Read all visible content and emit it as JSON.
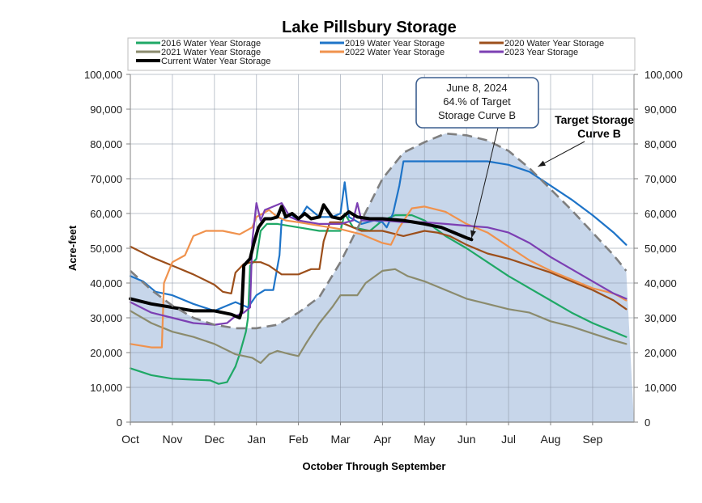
{
  "chart_data": {
    "type": "line",
    "title": "Lake Pillsbury Storage",
    "xlabel": "October Through September",
    "ylabel": "Acre-feet",
    "ylim": [
      0,
      100000
    ],
    "xlim": [
      0,
      11.8
    ],
    "yticks": [
      0,
      10000,
      20000,
      30000,
      40000,
      50000,
      60000,
      70000,
      80000,
      90000,
      100000
    ],
    "ytick_labels": [
      "0",
      "10,000",
      "20,000",
      "30,000",
      "40,000",
      "50,000",
      "60,000",
      "70,000",
      "80,000",
      "90,000",
      "100,000"
    ],
    "x_tick_labels": [
      "Oct",
      "Nov",
      "Dec",
      "Jan",
      "Feb",
      "Mar",
      "Apr",
      "May",
      "Jun",
      "Jul",
      "Aug",
      "Sep"
    ],
    "grid": true,
    "legend_position": "top",
    "x_unit": "months since Oct 1",
    "target_curve": {
      "name": "Target Storage Curve B",
      "color": "#7f7f7f",
      "fill": "#c7d6ea",
      "points": [
        [
          0,
          43500
        ],
        [
          0.5,
          38000
        ],
        [
          1,
          33500
        ],
        [
          1.5,
          30000
        ],
        [
          2,
          28000
        ],
        [
          2.5,
          27000
        ],
        [
          3,
          27000
        ],
        [
          3.5,
          28000
        ],
        [
          4,
          31500
        ],
        [
          4.5,
          36000
        ],
        [
          5,
          46000
        ],
        [
          5.5,
          58000
        ],
        [
          6,
          70000
        ],
        [
          6.5,
          77500
        ],
        [
          7,
          80500
        ],
        [
          7.5,
          83000
        ],
        [
          8,
          82500
        ],
        [
          8.5,
          81000
        ],
        [
          9,
          78000
        ],
        [
          9.5,
          73000
        ],
        [
          10,
          67000
        ],
        [
          10.5,
          61000
        ],
        [
          11,
          54500
        ],
        [
          11.5,
          48000
        ],
        [
          11.8,
          43500
        ]
      ]
    },
    "series": [
      {
        "name": "2016 Water Year Storage",
        "color": "#1fa866",
        "width": 2.2,
        "points": [
          [
            0,
            15500
          ],
          [
            0.5,
            13500
          ],
          [
            1,
            12500
          ],
          [
            1.5,
            12200
          ],
          [
            1.9,
            12000
          ],
          [
            2.1,
            11000
          ],
          [
            2.3,
            11500
          ],
          [
            2.5,
            16000
          ],
          [
            2.6,
            19500
          ],
          [
            2.75,
            26000
          ],
          [
            2.8,
            30000
          ],
          [
            2.85,
            45000
          ],
          [
            3,
            47000
          ],
          [
            3.1,
            55000
          ],
          [
            3.25,
            57000
          ],
          [
            3.5,
            57000
          ],
          [
            4,
            56000
          ],
          [
            4.5,
            55000
          ],
          [
            5,
            55000
          ],
          [
            5.1,
            60000
          ],
          [
            5.3,
            56000
          ],
          [
            5.7,
            55000
          ],
          [
            6,
            58000
          ],
          [
            6.3,
            59500
          ],
          [
            6.7,
            59500
          ],
          [
            7,
            58000
          ],
          [
            7.5,
            53500
          ],
          [
            8,
            50000
          ],
          [
            8.5,
            46000
          ],
          [
            9,
            42000
          ],
          [
            9.5,
            38500
          ],
          [
            10,
            35000
          ],
          [
            10.5,
            31500
          ],
          [
            11,
            28500
          ],
          [
            11.5,
            26000
          ],
          [
            11.8,
            24500
          ]
        ]
      },
      {
        "name": "2019 Water Year Storage",
        "color": "#1e74c8",
        "width": 2.2,
        "points": [
          [
            0,
            42000
          ],
          [
            0.3,
            40500
          ],
          [
            0.6,
            37500
          ],
          [
            1,
            36500
          ],
          [
            1.5,
            34000
          ],
          [
            2,
            32000
          ],
          [
            2.3,
            33500
          ],
          [
            2.5,
            34500
          ],
          [
            2.8,
            33000
          ],
          [
            3.0,
            36500
          ],
          [
            3.2,
            38000
          ],
          [
            3.4,
            38000
          ],
          [
            3.55,
            48000
          ],
          [
            3.6,
            58000
          ],
          [
            3.8,
            60000
          ],
          [
            4,
            58000
          ],
          [
            4.2,
            62000
          ],
          [
            4.5,
            59000
          ],
          [
            4.8,
            59000
          ],
          [
            5,
            60000
          ],
          [
            5.1,
            69000
          ],
          [
            5.2,
            59000
          ],
          [
            5.5,
            57000
          ],
          [
            5.8,
            58000
          ],
          [
            6,
            57500
          ],
          [
            6.1,
            56000
          ],
          [
            6.25,
            60000
          ],
          [
            6.4,
            68000
          ],
          [
            6.5,
            75000
          ],
          [
            7,
            75000
          ],
          [
            7.5,
            75000
          ],
          [
            8,
            75000
          ],
          [
            8.5,
            75000
          ],
          [
            9,
            74000
          ],
          [
            9.5,
            72000
          ],
          [
            10,
            68000
          ],
          [
            10.5,
            64000
          ],
          [
            11,
            59500
          ],
          [
            11.5,
            54500
          ],
          [
            11.8,
            51000
          ]
        ]
      },
      {
        "name": "2020 Water Year Storage",
        "color": "#9c4f1b",
        "width": 2.2,
        "points": [
          [
            0,
            50500
          ],
          [
            0.5,
            47500
          ],
          [
            1,
            45000
          ],
          [
            1.5,
            42500
          ],
          [
            2,
            39500
          ],
          [
            2.2,
            37500
          ],
          [
            2.4,
            37000
          ],
          [
            2.5,
            43000
          ],
          [
            2.7,
            45500
          ],
          [
            2.9,
            46000
          ],
          [
            3.1,
            46000
          ],
          [
            3.3,
            45000
          ],
          [
            3.6,
            42500
          ],
          [
            4,
            42500
          ],
          [
            4.3,
            44000
          ],
          [
            4.5,
            44000
          ],
          [
            4.6,
            52000
          ],
          [
            4.75,
            57500
          ],
          [
            5,
            57500
          ],
          [
            5.5,
            55000
          ],
          [
            6,
            55000
          ],
          [
            6.5,
            53500
          ],
          [
            7,
            55000
          ],
          [
            7.3,
            54500
          ],
          [
            7.6,
            53500
          ],
          [
            8,
            51000
          ],
          [
            8.5,
            48500
          ],
          [
            9,
            47000
          ],
          [
            9.5,
            45000
          ],
          [
            10,
            43000
          ],
          [
            10.5,
            40500
          ],
          [
            11,
            38000
          ],
          [
            11.5,
            35000
          ],
          [
            11.8,
            32500
          ]
        ]
      },
      {
        "name": "2021 Water Year Storage",
        "color": "#8b8b6d",
        "width": 2.2,
        "points": [
          [
            0,
            32000
          ],
          [
            0.5,
            28500
          ],
          [
            1,
            26000
          ],
          [
            1.5,
            24500
          ],
          [
            2,
            22500
          ],
          [
            2.5,
            19500
          ],
          [
            2.9,
            18500
          ],
          [
            3.1,
            17000
          ],
          [
            3.3,
            19500
          ],
          [
            3.5,
            20500
          ],
          [
            3.8,
            19500
          ],
          [
            4,
            19000
          ],
          [
            4.2,
            23000
          ],
          [
            4.5,
            28500
          ],
          [
            4.8,
            33000
          ],
          [
            5,
            36500
          ],
          [
            5.4,
            36500
          ],
          [
            5.6,
            40000
          ],
          [
            6,
            43500
          ],
          [
            6.3,
            44000
          ],
          [
            6.6,
            42000
          ],
          [
            7,
            40500
          ],
          [
            7.5,
            38000
          ],
          [
            8,
            35500
          ],
          [
            8.5,
            34000
          ],
          [
            9,
            32500
          ],
          [
            9.5,
            31500
          ],
          [
            10,
            29000
          ],
          [
            10.5,
            27500
          ],
          [
            11,
            25500
          ],
          [
            11.5,
            23500
          ],
          [
            11.8,
            22500
          ]
        ]
      },
      {
        "name": "2022 Water Year Storage",
        "color": "#f0924d",
        "width": 2.2,
        "points": [
          [
            0,
            22500
          ],
          [
            0.5,
            21500
          ],
          [
            0.75,
            21500
          ],
          [
            0.8,
            40000
          ],
          [
            1,
            46000
          ],
          [
            1.3,
            48000
          ],
          [
            1.5,
            53500
          ],
          [
            1.8,
            55000
          ],
          [
            2.2,
            55000
          ],
          [
            2.6,
            54000
          ],
          [
            2.9,
            56000
          ],
          [
            3.0,
            59000
          ],
          [
            3.3,
            61000
          ],
          [
            3.5,
            59000
          ],
          [
            3.7,
            58000
          ],
          [
            4,
            57500
          ],
          [
            4.5,
            56500
          ],
          [
            5,
            55500
          ],
          [
            5.5,
            54000
          ],
          [
            6,
            51500
          ],
          [
            6.2,
            51000
          ],
          [
            6.4,
            56000
          ],
          [
            6.7,
            61500
          ],
          [
            7,
            62000
          ],
          [
            7.5,
            60500
          ],
          [
            8,
            57000
          ],
          [
            8.5,
            54500
          ],
          [
            9,
            50500
          ],
          [
            9.5,
            46500
          ],
          [
            10,
            43500
          ],
          [
            10.5,
            41000
          ],
          [
            11,
            38500
          ],
          [
            11.5,
            37000
          ],
          [
            11.8,
            35000
          ]
        ]
      },
      {
        "name": "2023 Year Storage",
        "color": "#7c3fb3",
        "width": 2.2,
        "points": [
          [
            0,
            34500
          ],
          [
            0.5,
            31500
          ],
          [
            1,
            30000
          ],
          [
            1.5,
            28500
          ],
          [
            2,
            28000
          ],
          [
            2.3,
            28500
          ],
          [
            2.5,
            30500
          ],
          [
            2.7,
            31500
          ],
          [
            2.85,
            33000
          ],
          [
            2.9,
            52000
          ],
          [
            3,
            63000
          ],
          [
            3.1,
            58000
          ],
          [
            3.2,
            61000
          ],
          [
            3.4,
            62000
          ],
          [
            3.6,
            63000
          ],
          [
            3.8,
            59000
          ],
          [
            4,
            58000
          ],
          [
            4.5,
            57000
          ],
          [
            5,
            57000
          ],
          [
            5.3,
            58000
          ],
          [
            5.4,
            63000
          ],
          [
            5.5,
            58000
          ],
          [
            6,
            58000
          ],
          [
            6.5,
            57500
          ],
          [
            7,
            57500
          ],
          [
            7.5,
            57000
          ],
          [
            8,
            56500
          ],
          [
            8.5,
            56000
          ],
          [
            9,
            54500
          ],
          [
            9.5,
            51500
          ],
          [
            10,
            47500
          ],
          [
            10.5,
            44000
          ],
          [
            11,
            40500
          ],
          [
            11.5,
            37000
          ],
          [
            11.8,
            35500
          ]
        ]
      },
      {
        "name": "Current Water Year Storage",
        "color": "#000000",
        "width": 4,
        "points": [
          [
            0,
            35500
          ],
          [
            0.5,
            34000
          ],
          [
            1,
            33000
          ],
          [
            1.5,
            32000
          ],
          [
            1.8,
            32000
          ],
          [
            2,
            32000
          ],
          [
            2.2,
            31500
          ],
          [
            2.4,
            31000
          ],
          [
            2.6,
            30000
          ],
          [
            2.65,
            32000
          ],
          [
            2.7,
            45000
          ],
          [
            2.85,
            47000
          ],
          [
            2.95,
            52000
          ],
          [
            3.05,
            56000
          ],
          [
            3.2,
            58500
          ],
          [
            3.35,
            58500
          ],
          [
            3.5,
            59000
          ],
          [
            3.6,
            62000
          ],
          [
            3.7,
            59000
          ],
          [
            3.85,
            60000
          ],
          [
            4.0,
            58500
          ],
          [
            4.15,
            60000
          ],
          [
            4.3,
            58500
          ],
          [
            4.5,
            59000
          ],
          [
            4.6,
            62500
          ],
          [
            4.8,
            59000
          ],
          [
            5.0,
            58500
          ],
          [
            5.2,
            60500
          ],
          [
            5.4,
            59000
          ],
          [
            5.7,
            58500
          ],
          [
            6,
            58500
          ],
          [
            6.5,
            58000
          ],
          [
            7,
            57000
          ],
          [
            7.4,
            56000
          ],
          [
            7.7,
            54500
          ],
          [
            8,
            53000
          ],
          [
            8.12,
            52500
          ]
        ]
      }
    ]
  },
  "legend": {
    "items": [
      "2016 Water Year Storage",
      "2019 Water Year Storage",
      "2020 Water Year Storage",
      "2021 Water Year Storage",
      "2022 Water Year Storage",
      "2023 Year Storage",
      "Current Water Year Storage"
    ]
  },
  "callout": {
    "lines": [
      "June 8, 2024",
      "64.% of Target",
      "Storage Curve B"
    ],
    "target_month": 8.12,
    "target_value": 52500,
    "border_color": "#3c5f8f"
  },
  "target_label": {
    "lines": [
      "Target Storage",
      "Curve B"
    ],
    "arrow_month": 9.7,
    "arrow_value": 73500
  }
}
